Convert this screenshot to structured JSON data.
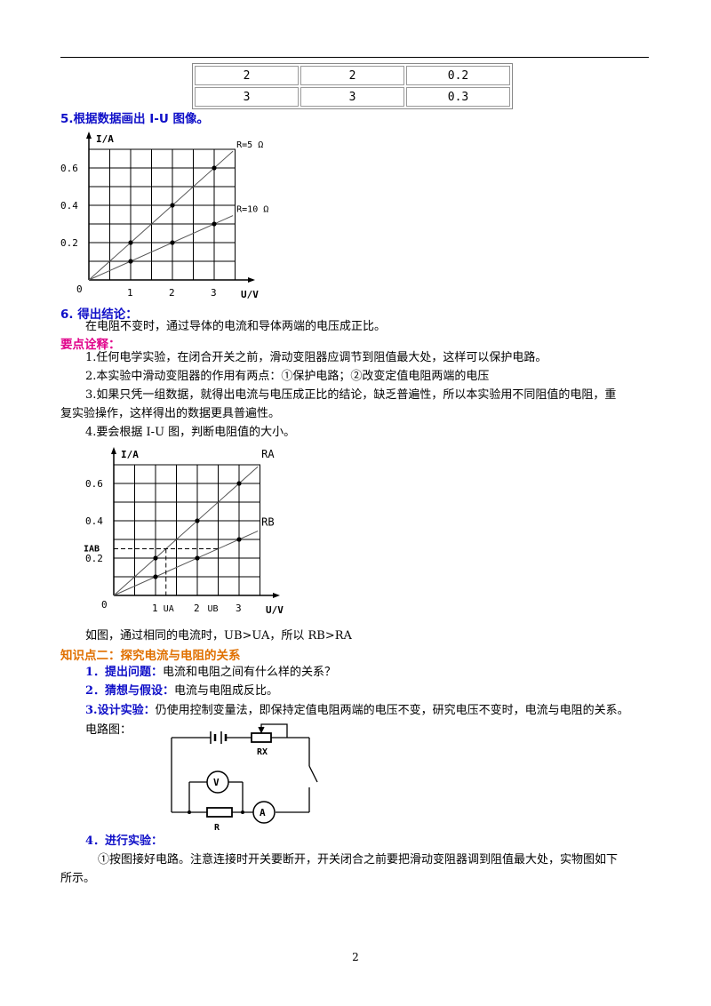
{
  "table": {
    "rows": [
      [
        "2",
        "2",
        "0.2"
      ],
      [
        "3",
        "3",
        "0.3"
      ]
    ]
  },
  "section5": {
    "title": "5.根据数据画出 I-U 图像。"
  },
  "chart1": {
    "chart_data": {
      "type": "line",
      "ylabel": "I/A",
      "xlabel": "U/V",
      "origin_label": "0",
      "x_ticks": [
        "1",
        "2",
        "3"
      ],
      "y_ticks": [
        "0.2",
        "0.4",
        "0.6"
      ],
      "xlim": [
        0,
        3.5
      ],
      "ylim": [
        0,
        0.7
      ],
      "series": [
        {
          "name": "R=5 Ω",
          "points": [
            [
              0,
              0
            ],
            [
              1,
              0.2
            ],
            [
              2,
              0.4
            ],
            [
              3,
              0.6
            ]
          ]
        },
        {
          "name": "R=10 Ω",
          "points": [
            [
              0,
              0
            ],
            [
              1,
              0.1
            ],
            [
              2,
              0.2
            ],
            [
              3,
              0.3
            ]
          ]
        }
      ]
    }
  },
  "section6": {
    "title": "6. 得出结论：",
    "text": "在电阻不变时，通过导体的电流和导体两端的电压成正比。"
  },
  "keypoints": {
    "title": "要点诠释：",
    "items": [
      "1.任何电学实验，在闭合开关之前，滑动变阻器应调节到阻值最大处，这样可以保护电路。",
      "2.本实验中滑动变阻器的作用有两点：①保护电路；②改变定值电阻两端的电压",
      "3.如果只凭一组数据，就得出电流与电压成正比的结论，缺乏普遍性，所以本实验用不同阻值的电阻，重",
      "复实验操作，这样得出的数据更具普遍性。",
      "4.要会根据 I-U 图，判断电阻值的大小。"
    ]
  },
  "chart2": {
    "chart_data": {
      "type": "line",
      "ylabel": "I/A",
      "xlabel": "U/V",
      "origin_label": "0",
      "x_ticks": [
        "1",
        "2",
        "3"
      ],
      "y_ticks": [
        "0.2",
        "0.4",
        "0.6"
      ],
      "x_marks": [
        "UA",
        "UB"
      ],
      "y_mark": "IAB",
      "xlim": [
        0,
        3.5
      ],
      "ylim": [
        0,
        0.7
      ],
      "series": [
        {
          "name": "RA",
          "points": [
            [
              0,
              0
            ],
            [
              1,
              0.2
            ],
            [
              2,
              0.4
            ],
            [
              3,
              0.6
            ]
          ]
        },
        {
          "name": "RB",
          "points": [
            [
              0,
              0
            ],
            [
              1,
              0.1
            ],
            [
              2,
              0.2
            ],
            [
              3,
              0.3
            ]
          ]
        }
      ]
    }
  },
  "conclusion2": "如图，通过相同的电流时，UB>UA，所以 RB>RA",
  "knowledge2": {
    "title": "知识点二：探究电流与电阻的关系",
    "item1_label": "1．提出问题：",
    "item1_text": "电流和电阻之间有什么样的关系？",
    "item2_label": "2．猜想与假设：",
    "item2_text": "电流与电阻成反比。",
    "item3_label": "3.设计实验：",
    "item3_text": "仍使用控制变量法，即保持定值电阻两端的电压不变，研究电压不变时，电流与电阻的关系。",
    "circuit_label": "电路图：",
    "circuit": {
      "rx_label": "RX",
      "r_label": "R",
      "v_label": "V",
      "a_label": "A"
    },
    "item4_label": "4．进行实验：",
    "item4_text1": "①按图接好电路。注意连接时开关要断开，开关闭合之前要把滑动变阻器调到阻值最大处，实物图如下",
    "item4_text2": "所示。"
  },
  "page_number": "2"
}
